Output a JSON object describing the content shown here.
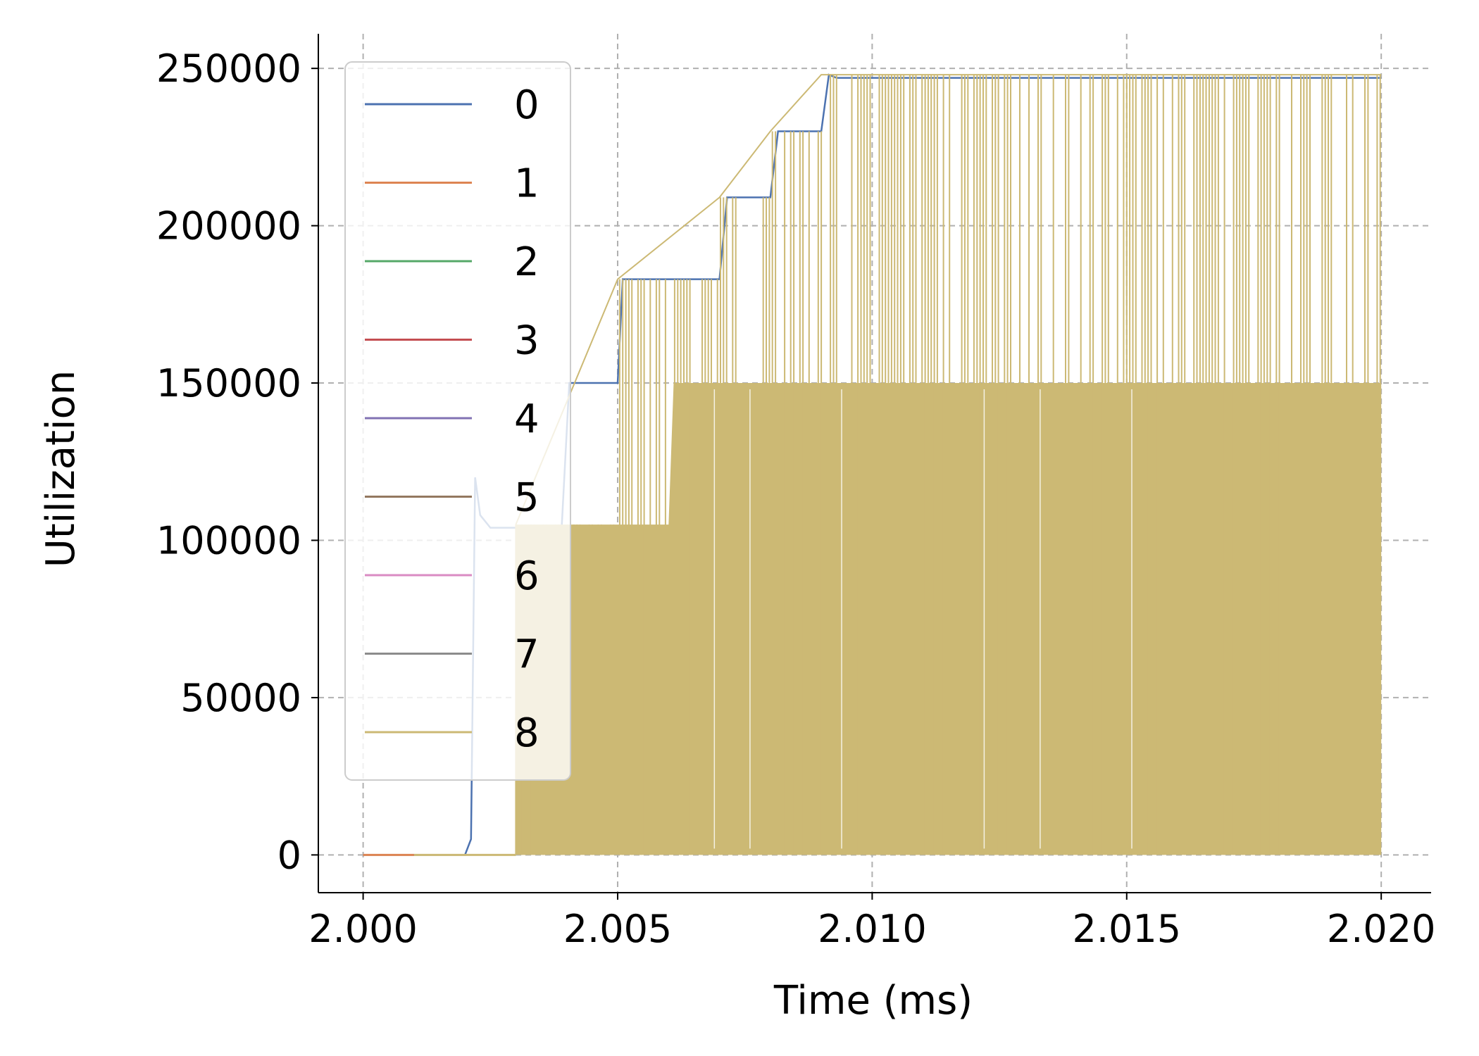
{
  "chart_data": {
    "type": "line",
    "title": "",
    "xlabel": "Time (ms)",
    "ylabel": "Utilization",
    "xlim": [
      1.99912,
      2.02098
    ],
    "ylim": [
      -12000,
      261000
    ],
    "x_ticks": [
      2.0,
      2.005,
      2.01,
      2.015,
      2.02
    ],
    "x_tick_labels": [
      "2.000",
      "2.005",
      "2.010",
      "2.015",
      "2.020"
    ],
    "y_ticks": [
      0,
      50000,
      100000,
      150000,
      200000,
      250000
    ],
    "y_tick_labels": [
      "0",
      "50000",
      "100000",
      "150000",
      "200000",
      "250000"
    ],
    "grid": true,
    "legend_placement": "upper-left",
    "colors": {
      "0": "#4c72b0",
      "1": "#dd8452",
      "2": "#55a868",
      "3": "#c44e52",
      "4": "#8172b3",
      "5": "#937860",
      "6": "#da8bc3",
      "7": "#8c8c8c",
      "8": "#ccb974"
    },
    "series": [
      {
        "name": "0",
        "color": "#4c72b0",
        "x": [
          2.0,
          2.002,
          2.00212,
          2.0022,
          2.0023,
          2.0025,
          2.003,
          2.0039,
          2.00405,
          2.0042,
          2.005,
          2.0051,
          2.0052,
          2.006,
          2.007,
          2.00715,
          2.0073,
          2.008,
          2.00815,
          2.0083,
          2.009,
          2.00915,
          2.0093,
          2.01,
          2.015,
          2.02
        ],
        "y": [
          0,
          0,
          5000,
          120000,
          108000,
          104000,
          104000,
          104000,
          150000,
          150000,
          150000,
          183000,
          183000,
          183000,
          183000,
          209000,
          209000,
          209000,
          230000,
          230000,
          230000,
          248000,
          247000,
          247000,
          247000,
          247000
        ]
      },
      {
        "name": "1",
        "color": "#dd8452",
        "x": [
          2.0,
          2.001
        ],
        "y": [
          0,
          0
        ]
      },
      {
        "name": "2",
        "color": "#55a868",
        "x": [],
        "y": []
      },
      {
        "name": "3",
        "color": "#c44e52",
        "x": [],
        "y": []
      },
      {
        "name": "4",
        "color": "#8172b3",
        "x": [],
        "y": []
      },
      {
        "name": "5",
        "color": "#937860",
        "x": [],
        "y": []
      },
      {
        "name": "6",
        "color": "#da8bc3",
        "x": [],
        "y": []
      },
      {
        "name": "7",
        "color": "#8c8c8c",
        "x": [],
        "y": []
      },
      {
        "name": "8",
        "color": "#ccb974",
        "x_start": 2.001,
        "x_active": 2.003,
        "x_end": 2.02,
        "envelope_max": [
          [
            2.003,
            105000
          ],
          [
            2.005,
            183000
          ],
          [
            2.007,
            209000
          ],
          [
            2.008,
            230000
          ],
          [
            2.009,
            248000
          ],
          [
            2.02,
            248000
          ]
        ],
        "dense_floor": [
          [
            2.003,
            105000
          ],
          [
            2.006,
            105000
          ],
          [
            2.0061,
            150000
          ],
          [
            2.02,
            150000
          ]
        ]
      }
    ]
  }
}
